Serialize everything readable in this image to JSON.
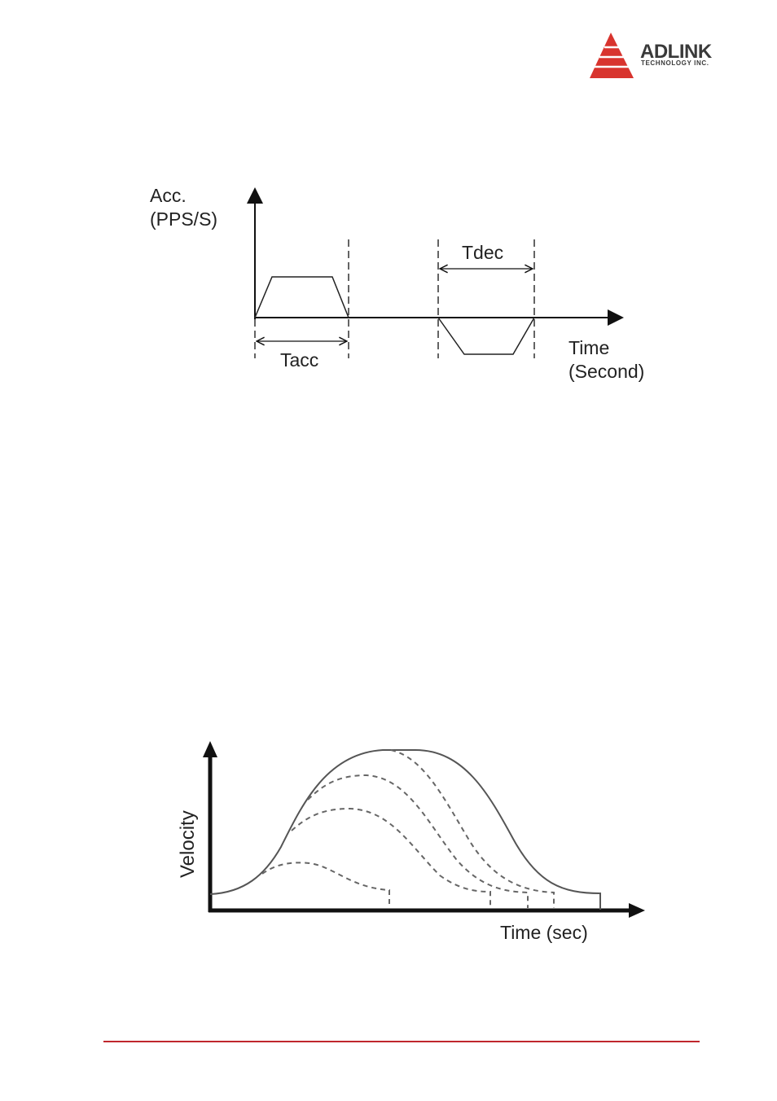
{
  "header": {
    "brand": "ADLINK",
    "brand_sub": "TECHNOLOGY INC.",
    "brand_color": "#d8342e"
  },
  "acc_diagram": {
    "y_label_line1": "Acc.",
    "y_label_line2": "(PPS/S)",
    "x_label_line1": "Time",
    "x_label_line2": "(Second)",
    "tdec_label": "Tdec",
    "tacc_label": "Tacc"
  },
  "velocity_diagram": {
    "y_label": "Velocity",
    "x_label": "Time (sec)"
  },
  "footer": {
    "rule_color": "#c0272d"
  }
}
